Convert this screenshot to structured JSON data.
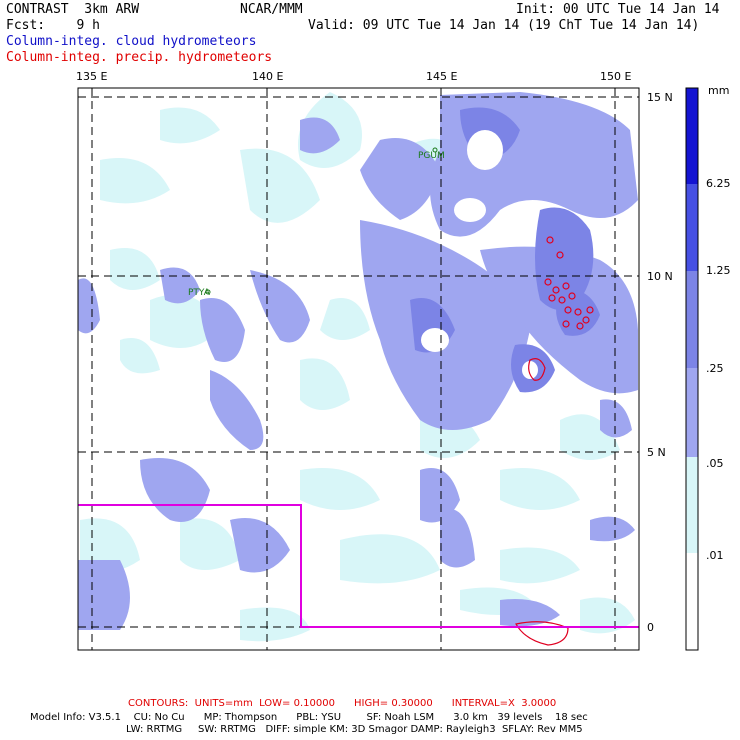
{
  "header": {
    "model": "CONTRAST  3km ARW",
    "center": "NCAR/MMM",
    "init": "Init: 00 UTC Tue 14 Jan 14",
    "fcst": "Fcst:    9 h",
    "valid": "Valid: 09 UTC Tue 14 Jan 14 (19 ChT Tue 14 Jan 14)",
    "field1": "Column-integ. cloud hydrometeors",
    "field2": "Column-integ. precip. hydrometeors"
  },
  "map": {
    "lon_labels": [
      "135 E",
      "140 E",
      "145 E",
      "150 E"
    ],
    "lat_labels": [
      "15 N",
      "10 N",
      "5 N",
      "0"
    ],
    "stations": [
      "PGUM",
      "PTYA"
    ],
    "colors": {
      "land": "#ffffff",
      "cloud_light": "#d8f6f8",
      "cloud_mid": "#9fa6f0",
      "cloud_deep": "#7c84e6",
      "precip_contour": "#e00020",
      "domain_box": "#e000e0"
    }
  },
  "colorbar": {
    "unit": "mm",
    "labels": [
      "6.25",
      "1.25",
      ".25",
      ".05",
      ".01"
    ],
    "colors": [
      "#1414d2",
      "#4650e4",
      "#7c84e6",
      "#9fa6f0",
      "#d8f6f8",
      "#ffffff"
    ]
  },
  "footer": {
    "contours": "CONTOURS:  UNITS=mm  LOW= 0.10000      HIGH= 0.30000      INTERVAL=X  3.0000",
    "info1": "Model Info: V3.5.1    CU: No Cu      MP: Thompson      PBL: YSU        SF: Noah LSM      3.0 km   39 levels    18 sec",
    "info2": "LW: RRTMG     SW: RRTMG   DIFF: simple KM: 3D Smagor DAMP: Rayleigh3  SFLAY: Rev MM5"
  }
}
